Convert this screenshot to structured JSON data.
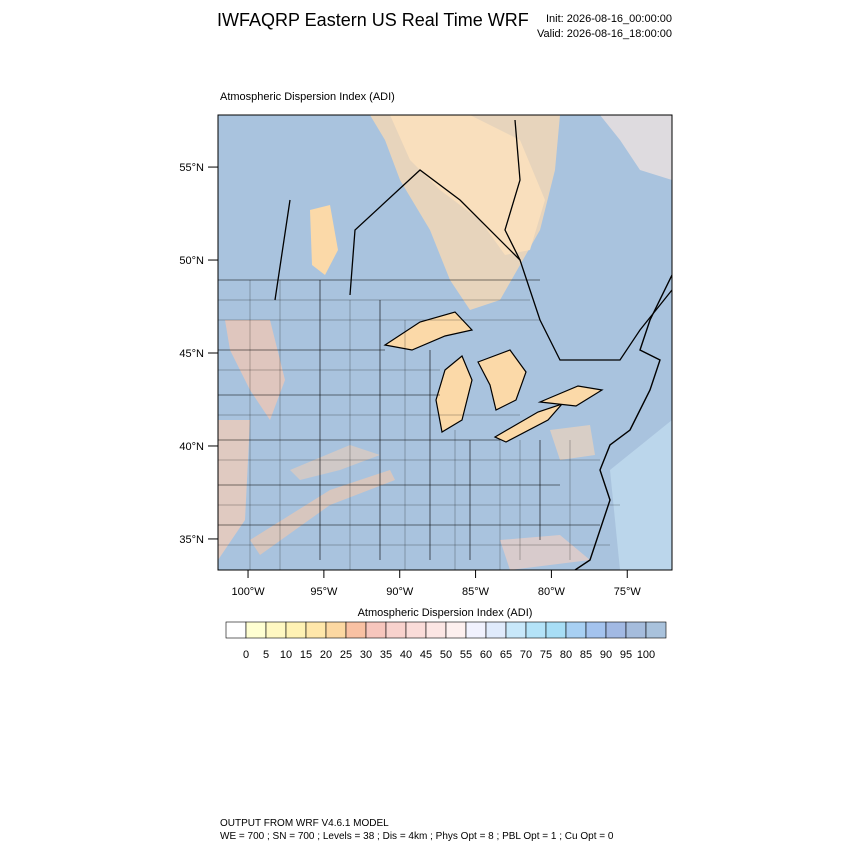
{
  "header": {
    "title": "IWFAQRP Eastern US Real Time WRF",
    "init": "Init: 2026-08-16_00:00:00",
    "valid": "Valid: 2026-08-16_18:00:00"
  },
  "map": {
    "subtitle": "Atmospheric Dispersion Index   (ADI)",
    "lonlim": [
      -101.98,
      -72.05
    ],
    "latlim": [
      33.33,
      57.8
    ],
    "lonticks": [
      {
        "value": -100,
        "label": "100°W"
      },
      {
        "value": -95,
        "label": "95°W"
      },
      {
        "value": -90,
        "label": "90°W"
      },
      {
        "value": -85,
        "label": "85°W"
      },
      {
        "value": -80,
        "label": "80°W"
      },
      {
        "value": -75,
        "label": "75°W"
      }
    ],
    "latticks": [
      {
        "value": 35,
        "label": "35°N"
      },
      {
        "value": 40,
        "label": "40°N"
      },
      {
        "value": 45,
        "label": "45°N"
      },
      {
        "value": 50,
        "label": "50°N"
      },
      {
        "value": 55,
        "label": "55°N"
      }
    ]
  },
  "colorbar": {
    "title": "Atmospheric Dispersion Index  (ADI)",
    "levels": [
      0,
      5,
      10,
      15,
      20,
      25,
      30,
      35,
      40,
      45,
      50,
      55,
      60,
      65,
      70,
      75,
      80,
      85,
      90,
      95,
      100
    ],
    "colors": [
      "#ffffff",
      "#ffffd2",
      "#fff8c2",
      "#fff2b4",
      "#ffe7aa",
      "#fcd8a2",
      "#f9c1a3",
      "#f7c6bd",
      "#f8d2cd",
      "#fadcd9",
      "#fce6e4",
      "#fdf0ef",
      "#f1f2fe",
      "#e0ebfc",
      "#c8e8fa",
      "#b4e3f8",
      "#a8def6",
      "#a8d0f3",
      "#a4c3ee",
      "#a2b9e3",
      "#a5bcdc",
      "#a9c2dc"
    ]
  },
  "footer": {
    "line1": "OUTPUT FROM WRF V4.6.1 MODEL",
    "line2": "WE = 700 ; SN = 700 ; Levels = 38 ; Dis = 4km ; Phys Opt = 8 ; PBL Opt = 1 ; Cu Opt = 0"
  }
}
